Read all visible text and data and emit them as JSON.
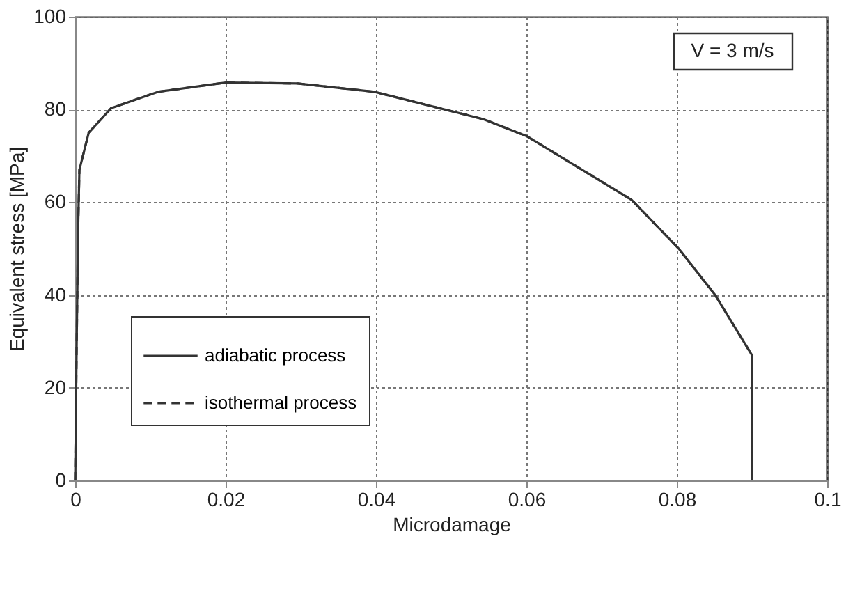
{
  "chart_data": {
    "type": "line",
    "xlabel": "Microdamage",
    "ylabel": "Equivalent stress [MPa]",
    "x": [
      0,
      0.0002,
      0.0004,
      0.00056,
      0.0018,
      0.0048,
      0.011,
      0.02,
      0.0296,
      0.0398,
      0.0543,
      0.0601,
      0.074,
      0.0802,
      0.0851,
      0.09,
      0.09
    ],
    "series": [
      {
        "name": "adiabatic process",
        "color": "#333333",
        "line_style": "solid",
        "values": [
          0,
          30,
          55,
          67,
          75,
          80.3,
          83.8,
          85.8,
          85.6,
          83.8,
          77.9,
          74.2,
          60.5,
          50.1,
          40,
          27,
          0
        ]
      },
      {
        "name": "isothermal process",
        "color": "#333333",
        "line_style": "dashed",
        "values": [
          0,
          30,
          55,
          67,
          75,
          80.3,
          83.8,
          85.8,
          85.6,
          83.8,
          77.9,
          74.2,
          60.5,
          50.1,
          40,
          27,
          0
        ]
      }
    ],
    "xlim": [
      0,
      0.1
    ],
    "xticks": [
      0,
      0.02,
      0.04,
      0.06,
      0.08,
      0.1
    ],
    "ylim": [
      0,
      100
    ],
    "yticks": [
      0,
      20,
      40,
      60,
      80,
      100
    ],
    "grid": true,
    "legend": "bottom left",
    "marker": "none",
    "annotations": [
      "V = 3 m/s"
    ]
  }
}
